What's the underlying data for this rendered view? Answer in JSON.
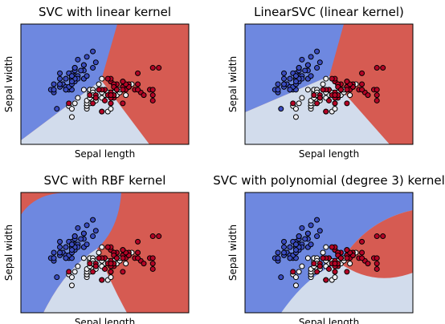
{
  "chart_data": {
    "type": "scatter",
    "subplots": [
      {
        "title": "SVC with linear kernel"
      },
      {
        "title": "LinearSVC (linear kernel)"
      },
      {
        "title": "SVC with RBF kernel"
      },
      {
        "title": "SVC with polynomial (degree 3) kernel"
      }
    ],
    "x_label": "Sepal length",
    "y_label": "Sepal width",
    "xlim": [
      3.3,
      8.9
    ],
    "ylim": [
      1.0,
      5.4
    ],
    "region_colors": [
      "#6e88e0",
      "#d2dcec",
      "#d65b52"
    ],
    "series": [
      {
        "color": "#3b4cc0",
        "x": [
          5.1,
          4.9,
          4.7,
          4.6,
          5.0,
          5.4,
          4.6,
          5.0,
          4.4,
          4.9,
          5.4,
          4.8,
          4.8,
          4.3,
          5.8,
          5.7,
          5.4,
          5.1,
          5.7,
          5.1,
          5.4,
          5.1,
          4.6,
          5.1,
          4.8,
          5.0,
          5.0,
          5.2,
          5.2,
          4.7,
          4.8,
          5.4,
          5.2,
          5.5,
          4.9,
          5.0,
          5.5,
          4.9,
          4.4,
          5.1,
          5.0,
          4.5,
          4.4,
          5.0,
          5.1,
          4.8,
          5.1,
          4.6,
          5.3,
          5.0
        ],
        "y": [
          3.5,
          3.0,
          3.2,
          3.1,
          3.6,
          3.9,
          3.4,
          3.4,
          2.9,
          3.1,
          3.7,
          3.4,
          3.0,
          3.0,
          4.0,
          4.4,
          3.9,
          3.5,
          3.8,
          3.8,
          3.4,
          3.7,
          3.6,
          3.3,
          3.4,
          3.0,
          3.4,
          3.5,
          3.4,
          3.2,
          3.1,
          3.4,
          4.1,
          4.2,
          3.1,
          3.2,
          3.5,
          3.6,
          3.0,
          3.4,
          3.5,
          2.3,
          3.2,
          3.5,
          3.8,
          3.0,
          3.8,
          3.2,
          3.7,
          3.3
        ]
      },
      {
        "color": "#eeeef2",
        "x": [
          7.0,
          6.4,
          6.9,
          5.5,
          6.5,
          5.7,
          6.3,
          4.9,
          6.6,
          5.2,
          5.0,
          5.9,
          6.0,
          6.1,
          5.6,
          6.7,
          5.6,
          5.8,
          6.2,
          5.6,
          5.9,
          6.1,
          6.3,
          6.1,
          6.4,
          6.6,
          6.8,
          6.7,
          6.0,
          5.7,
          5.5,
          5.5,
          5.8,
          6.0,
          5.4,
          6.0,
          6.7,
          6.3,
          5.6,
          5.5,
          5.5,
          6.1,
          5.8,
          5.0,
          5.6,
          5.7,
          5.7,
          6.2,
          5.1,
          5.7
        ],
        "y": [
          3.2,
          3.2,
          3.1,
          2.3,
          2.8,
          2.8,
          3.3,
          2.4,
          2.9,
          2.7,
          2.0,
          3.0,
          2.2,
          2.9,
          2.9,
          3.1,
          3.0,
          2.7,
          2.2,
          2.5,
          3.2,
          2.8,
          2.5,
          2.8,
          2.9,
          3.0,
          2.8,
          3.0,
          2.9,
          2.6,
          2.4,
          2.4,
          2.7,
          2.7,
          3.0,
          3.4,
          3.1,
          2.3,
          3.0,
          2.5,
          2.6,
          3.0,
          2.6,
          2.3,
          2.7,
          3.0,
          2.9,
          2.9,
          2.5,
          2.8
        ]
      },
      {
        "color": "#b40426",
        "x": [
          6.3,
          5.8,
          7.1,
          6.3,
          6.5,
          7.6,
          4.9,
          7.3,
          6.7,
          7.2,
          6.5,
          6.4,
          6.8,
          5.7,
          5.8,
          6.4,
          6.5,
          7.7,
          7.7,
          6.0,
          6.9,
          5.6,
          7.7,
          6.3,
          6.7,
          7.2,
          6.2,
          6.1,
          6.4,
          7.2,
          7.4,
          7.9,
          6.4,
          6.3,
          6.1,
          7.7,
          6.3,
          6.4,
          6.0,
          6.9,
          6.7,
          6.9,
          5.8,
          6.8,
          6.7,
          6.7,
          6.3,
          6.5,
          6.2,
          5.9
        ],
        "y": [
          3.3,
          2.7,
          3.0,
          2.9,
          3.0,
          3.0,
          2.5,
          2.9,
          2.5,
          3.6,
          3.2,
          2.7,
          3.0,
          2.5,
          2.8,
          3.2,
          3.0,
          3.8,
          2.6,
          2.2,
          3.2,
          2.8,
          2.8,
          2.7,
          3.3,
          3.2,
          2.8,
          3.0,
          2.8,
          3.0,
          2.8,
          3.8,
          2.8,
          2.8,
          2.6,
          3.0,
          3.4,
          3.1,
          3.0,
          3.1,
          3.1,
          3.1,
          2.7,
          3.2,
          3.3,
          3.0,
          2.5,
          3.0,
          3.4,
          3.0
        ]
      }
    ]
  }
}
